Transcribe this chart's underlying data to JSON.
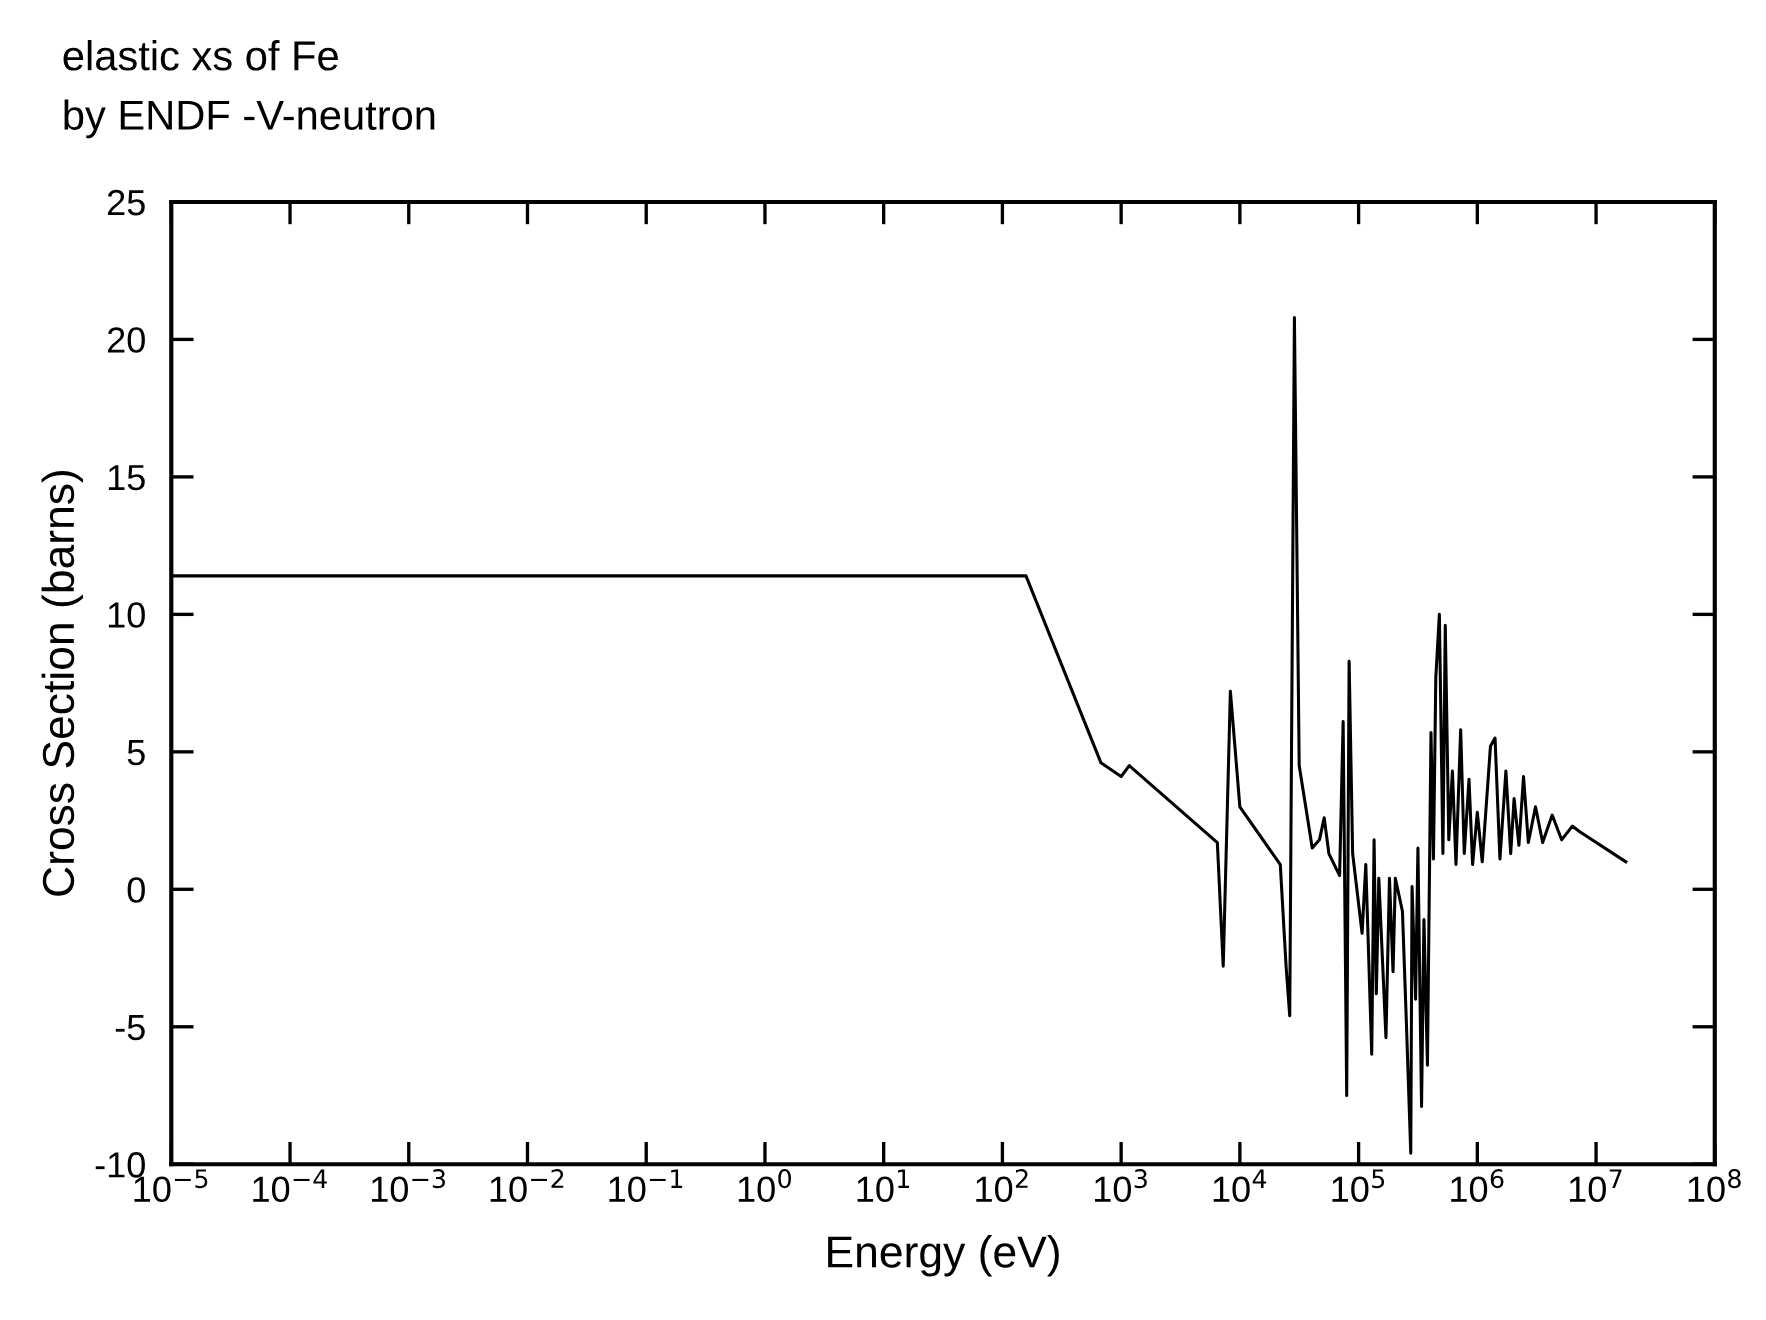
{
  "chart_data": {
    "type": "line",
    "title": "elastic xs of Fe",
    "subtitle": "by ENDF -V-neutron",
    "xlabel": "Energy (eV)",
    "ylabel": "Cross Section (barns)",
    "log": "x",
    "grid": false,
    "legend": false,
    "marker": "none",
    "line_style": "solid",
    "xlim": [
      1e-05,
      100000000.0
    ],
    "ylim": [
      -10,
      25
    ],
    "xticks": [
      {
        "value": 1e-05,
        "label": "10$^{−5}$"
      },
      {
        "value": 0.0001,
        "label": "10$^{−4}$"
      },
      {
        "value": 0.001,
        "label": "10$^{−3}$"
      },
      {
        "value": 0.01,
        "label": "10$^{−2}$"
      },
      {
        "value": 0.1,
        "label": "10$^{−1}$"
      },
      {
        "value": 1,
        "label": "10$^{0}$"
      },
      {
        "value": 10,
        "label": "10$^{1}$"
      },
      {
        "value": 100,
        "label": "10$^{2}$"
      },
      {
        "value": 1000,
        "label": "10$^{3}$"
      },
      {
        "value": 10000,
        "label": "10$^{4}$"
      },
      {
        "value": 100000,
        "label": "10$^{5}$"
      },
      {
        "value": 1000000,
        "label": "10$^{6}$"
      },
      {
        "value": 10000000,
        "label": "10$^{7}$"
      },
      {
        "value": 100000000,
        "label": "10$^{8}$"
      }
    ],
    "yticks": [
      -10,
      -5,
      0,
      5,
      10,
      15,
      20,
      25
    ],
    "series": [
      {
        "color": "#000000",
        "x": [
          1e-05,
          158,
          676,
          1000,
          1170,
          6460,
          7240,
          8320,
          10000,
          21900,
          24500,
          26300,
          28800,
          31600,
          40700,
          46800,
          51300,
          56200,
          69200,
          74100,
          79400,
          83200,
          89100,
          107000,
          115000,
          129000,
          135000,
          141000,
          148000,
          170000,
          182000,
          195000,
          204000,
          234000,
          251000,
          275000,
          282000,
          302000,
          316000,
          339000,
          355000,
          380000,
          407000,
          427000,
          447000,
          479000,
          513000,
          537000,
          575000,
          617000,
          661000,
          724000,
          776000,
          851000,
          912000,
          1000000,
          1100000,
          1290000,
          1410000,
          1550000,
          1740000,
          1910000,
          2040000,
          2240000,
          2450000,
          2690000,
          3090000,
          3550000,
          4270000,
          5130000,
          6310000,
          7240000,
          17800000
        ],
        "values": [
          11.4,
          11.4,
          4.6,
          4.1,
          4.5,
          1.7,
          -2.8,
          7.2,
          3.0,
          0.9,
          -2.8,
          -4.6,
          20.8,
          4.5,
          1.5,
          1.8,
          2.6,
          1.3,
          0.5,
          6.1,
          -7.5,
          8.3,
          1.3,
          -1.6,
          0.9,
          -6.0,
          1.8,
          -3.8,
          0.4,
          -5.4,
          0.4,
          -3.0,
          0.4,
          -0.8,
          -4.5,
          -9.6,
          0.1,
          -4.0,
          1.5,
          -7.9,
          -1.1,
          -6.4,
          5.7,
          1.1,
          7.7,
          10.0,
          1.3,
          9.6,
          1.8,
          4.3,
          0.9,
          5.8,
          1.3,
          4.0,
          0.9,
          2.8,
          1.0,
          5.2,
          5.5,
          1.1,
          4.3,
          1.3,
          3.3,
          1.6,
          4.1,
          1.7,
          3.0,
          1.7,
          2.7,
          1.8,
          2.3,
          2.1,
          1.0
        ]
      }
    ]
  }
}
